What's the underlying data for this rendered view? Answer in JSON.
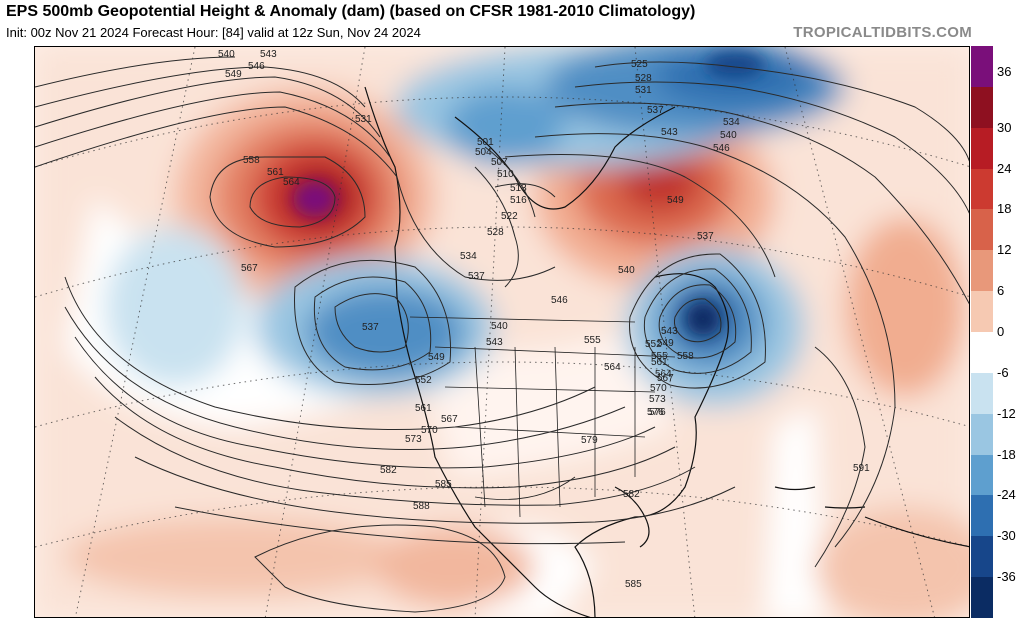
{
  "header": {
    "title": "EPS 500mb Geopotential Height & Anomaly (dam) (based on CFSR 1981-2010 Climatology)",
    "subtitle": "Init: 00z Nov 21 2024   Forecast Hour: [84]   valid at 12z Sun, Nov 24 2024",
    "watermark": "TROPICALTIDBITS.COM"
  },
  "colorbar": {
    "labels": [
      "36",
      "30",
      "24",
      "18",
      "12",
      "6",
      "0",
      "-6",
      "-12",
      "-18",
      "-24",
      "-30",
      "-36"
    ],
    "colors": [
      "#7a0f7a",
      "#8e1020",
      "#b71c24",
      "#cc3a30",
      "#d8624a",
      "#e8987a",
      "#f6c9b2",
      "#ffffff",
      "#c9e2f0",
      "#9ac6e2",
      "#5e9fcf",
      "#2e6fb1",
      "#17468a",
      "#0b2c63"
    ]
  },
  "contour_labels": [
    {
      "t": "540"
    },
    {
      "t": "543"
    },
    {
      "t": "546"
    },
    {
      "t": "549"
    },
    {
      "t": "531"
    },
    {
      "t": "558"
    },
    {
      "t": "561"
    },
    {
      "t": "564"
    },
    {
      "t": "567"
    },
    {
      "t": "537"
    },
    {
      "t": "525"
    },
    {
      "t": "528"
    },
    {
      "t": "531"
    },
    {
      "t": "537"
    },
    {
      "t": "543"
    },
    {
      "t": "534"
    },
    {
      "t": "540"
    },
    {
      "t": "546"
    },
    {
      "t": "549"
    },
    {
      "t": "501"
    },
    {
      "t": "504"
    },
    {
      "t": "507"
    },
    {
      "t": "510"
    },
    {
      "t": "513"
    },
    {
      "t": "516"
    },
    {
      "t": "522"
    },
    {
      "t": "528"
    },
    {
      "t": "534"
    },
    {
      "t": "537"
    },
    {
      "t": "537"
    },
    {
      "t": "540"
    },
    {
      "t": "546"
    },
    {
      "t": "540"
    },
    {
      "t": "543"
    },
    {
      "t": "549"
    },
    {
      "t": "552"
    },
    {
      "t": "555"
    },
    {
      "t": "564"
    },
    {
      "t": "543"
    },
    {
      "t": "549"
    },
    {
      "t": "552"
    },
    {
      "t": "555"
    },
    {
      "t": "558"
    },
    {
      "t": "561"
    },
    {
      "t": "564"
    },
    {
      "t": "567"
    },
    {
      "t": "570"
    },
    {
      "t": "573"
    },
    {
      "t": "576"
    },
    {
      "t": "579"
    },
    {
      "t": "582"
    },
    {
      "t": "585"
    },
    {
      "t": "588"
    },
    {
      "t": "582"
    },
    {
      "t": "585"
    },
    {
      "t": "591"
    },
    {
      "t": "561"
    },
    {
      "t": "567"
    },
    {
      "t": "570"
    },
    {
      "t": "573"
    },
    {
      "t": "576"
    }
  ]
}
